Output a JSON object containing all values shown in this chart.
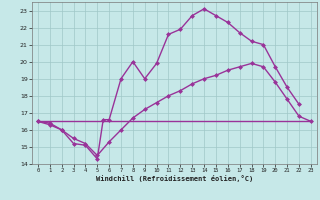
{
  "bg_color": "#c6e8e8",
  "grid_color": "#a0c8c8",
  "line_color": "#993399",
  "markersize": 2.5,
  "linewidth": 1.0,
  "xlim": [
    -0.5,
    23.5
  ],
  "ylim": [
    14,
    23.5
  ],
  "yticks": [
    14,
    15,
    16,
    17,
    18,
    19,
    20,
    21,
    22,
    23
  ],
  "xticks": [
    0,
    1,
    2,
    3,
    4,
    5,
    6,
    7,
    8,
    9,
    10,
    11,
    12,
    13,
    14,
    15,
    16,
    17,
    18,
    19,
    20,
    21,
    22,
    23
  ],
  "xlabel": "Windchill (Refroidissement éolien,°C)",
  "series1_x": [
    0,
    1,
    2,
    3,
    4,
    5,
    5.5,
    6,
    7,
    8,
    9,
    10,
    11,
    12,
    13,
    14,
    15,
    16,
    17,
    18,
    19,
    20,
    21,
    22
  ],
  "series1_y": [
    16.5,
    16.4,
    16.0,
    15.2,
    15.1,
    14.3,
    16.6,
    16.6,
    19.0,
    20.0,
    19.0,
    19.9,
    21.6,
    21.9,
    22.7,
    23.1,
    22.7,
    22.3,
    21.7,
    21.2,
    21.0,
    19.7,
    18.5,
    17.5
  ],
  "series2_x": [
    0,
    1,
    2,
    3,
    4,
    5,
    6,
    7,
    8,
    9,
    10,
    11,
    12,
    13,
    14,
    15,
    16,
    17,
    18,
    19,
    20,
    21,
    22,
    23
  ],
  "series2_y": [
    16.5,
    16.3,
    16.0,
    15.5,
    15.2,
    14.5,
    15.3,
    16.0,
    16.7,
    17.2,
    17.6,
    18.0,
    18.3,
    18.7,
    19.0,
    19.2,
    19.5,
    19.7,
    19.9,
    19.7,
    18.8,
    17.8,
    16.8,
    16.5
  ],
  "series3_x": [
    0,
    23
  ],
  "series3_y": [
    16.5,
    16.5
  ]
}
